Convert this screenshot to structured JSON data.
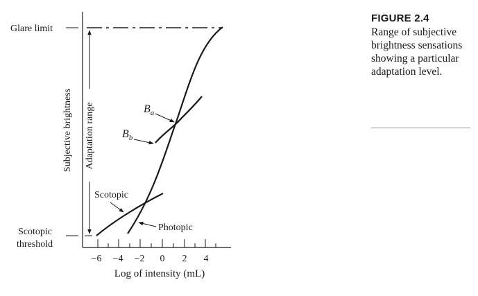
{
  "figure": {
    "left_labels": {
      "glare_limit": "Glare limit",
      "scotopic_threshold_line1": "Scotopic",
      "scotopic_threshold_line2": "threshold"
    },
    "ylabel": "Subjective brightness",
    "adaptation_range": "Adaptation range",
    "xlabel": "Log of intensity (mL)",
    "x_ticks": [
      "−6",
      "−4",
      "−2",
      "0",
      "2",
      "4"
    ],
    "curve_labels": {
      "ba_main": "B",
      "ba_sub": "a",
      "bb_main": "B",
      "bb_sub": "b",
      "scotopic": "Scotopic",
      "photopic": "Photopic"
    }
  },
  "caption": {
    "label": "FIGURE 2.4",
    "text": "Range of subjective brightness sensations showing a particular adaptation level."
  }
}
